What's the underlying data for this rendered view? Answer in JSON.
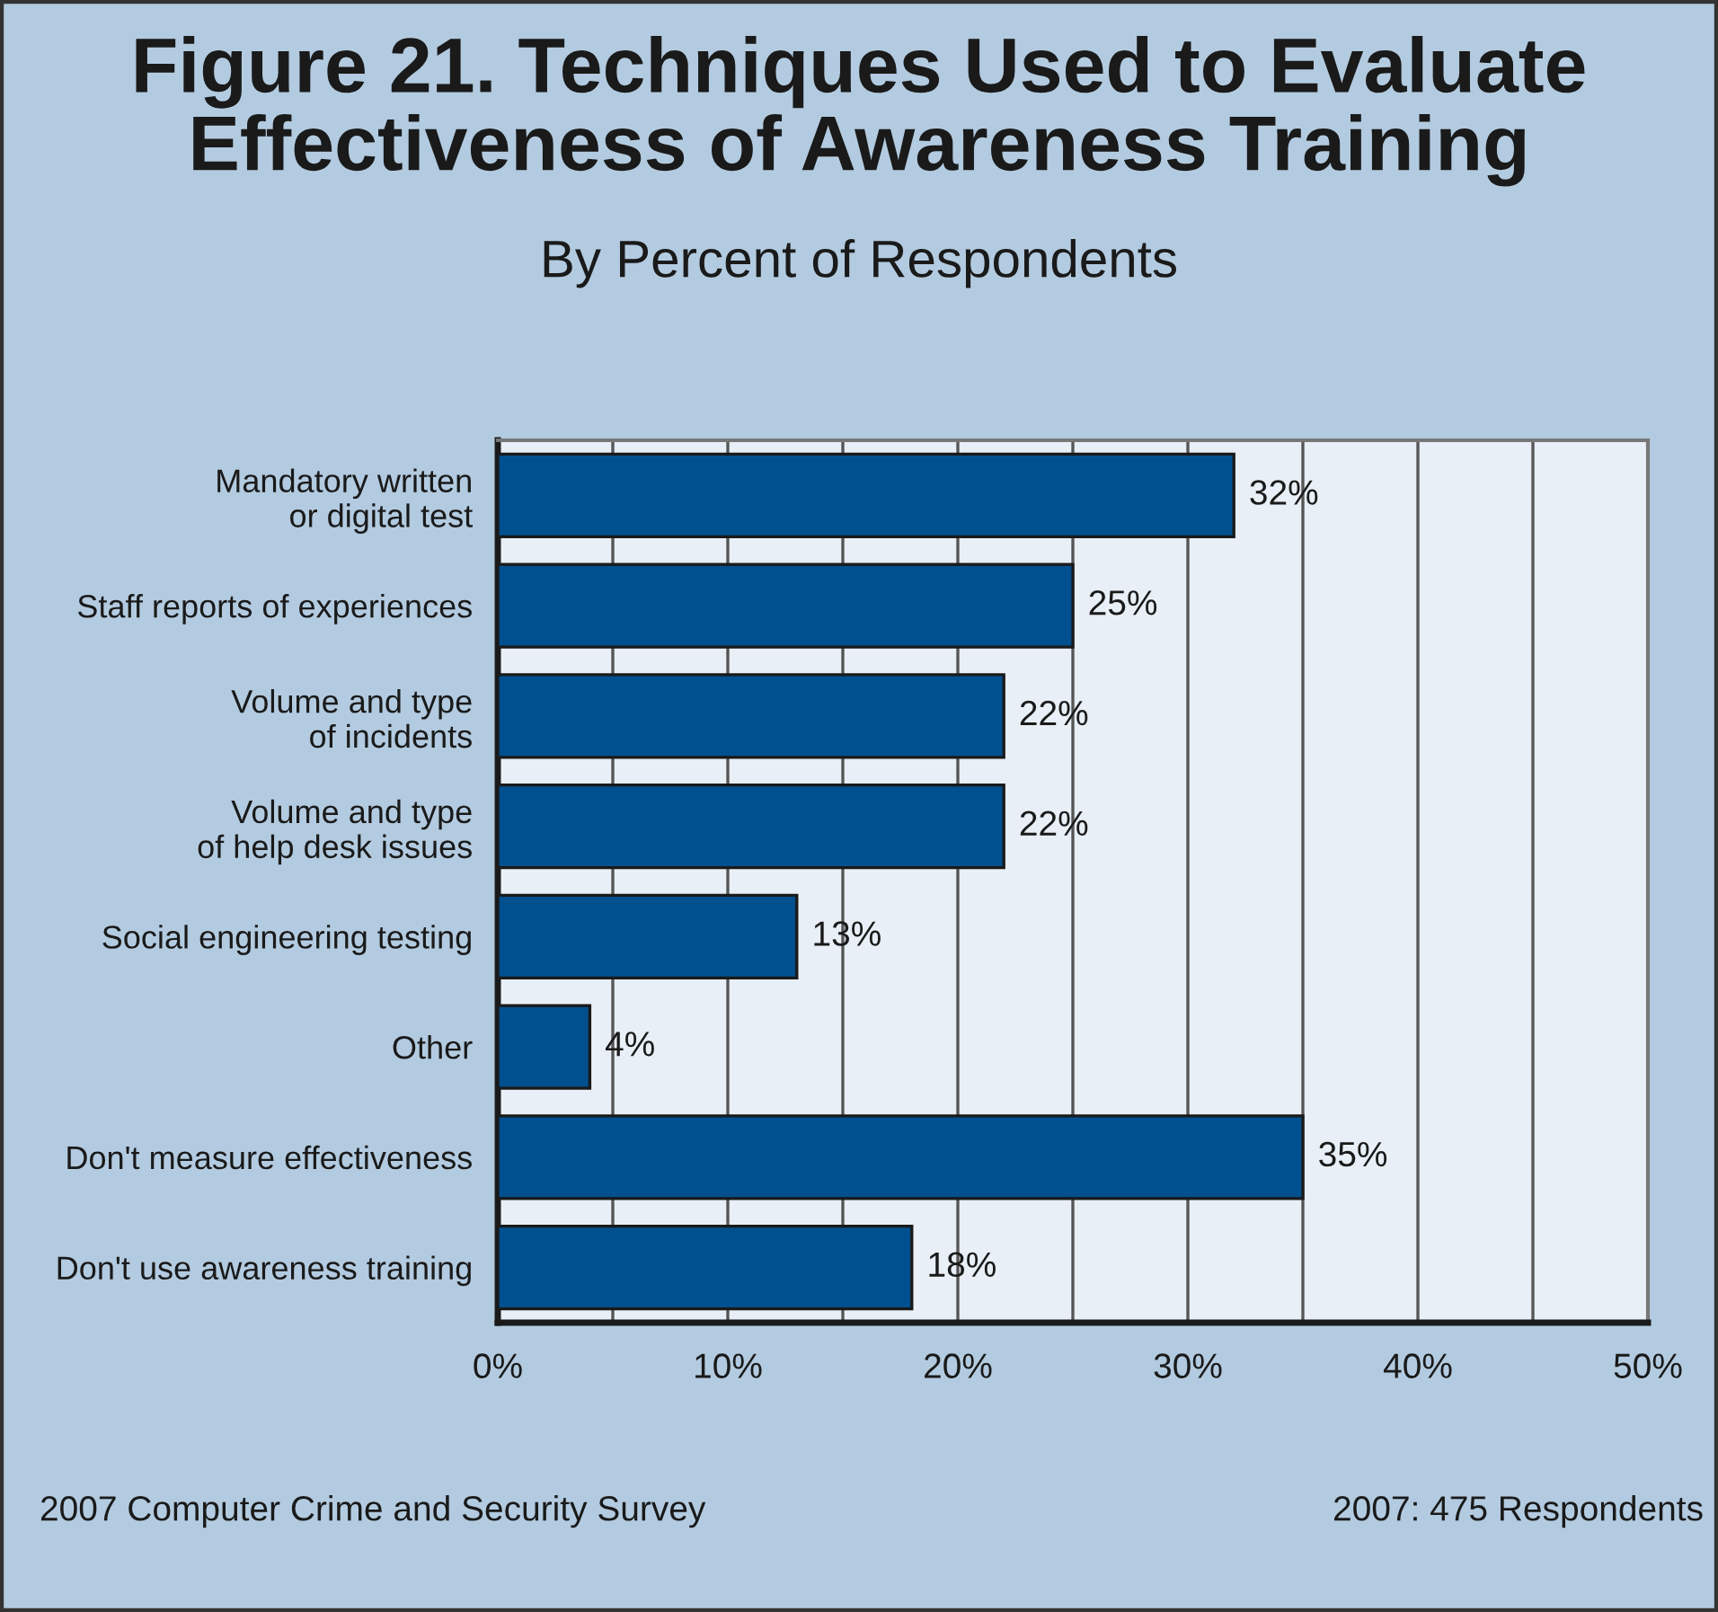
{
  "chart_data": {
    "type": "bar",
    "orientation": "horizontal",
    "title": "Figure 21. Techniques Used to Evaluate\nEffectiveness of Awareness Training",
    "subtitle": "By Percent of Respondents",
    "categories": [
      "Mandatory written\nor digital test",
      "Staff reports of experiences",
      "Volume and type\nof incidents",
      "Volume and type\nof help desk issues",
      "Social engineering testing",
      "Other",
      "Don't measure effectiveness",
      "Don't use awareness training"
    ],
    "values": [
      32,
      25,
      22,
      22,
      13,
      4,
      35,
      18
    ],
    "value_labels": [
      "32%",
      "25%",
      "22%",
      "22%",
      "13%",
      "4%",
      "35%",
      "18%"
    ],
    "color": "#00508f",
    "xlim": [
      0,
      50
    ],
    "xticks": [
      {
        "value": 0,
        "label": "0%"
      },
      {
        "value": 5,
        "label": null
      },
      {
        "value": 10,
        "label": "10%"
      },
      {
        "value": 15,
        "label": null
      },
      {
        "value": 20,
        "label": "20%"
      },
      {
        "value": 25,
        "label": null
      },
      {
        "value": 30,
        "label": "30%"
      },
      {
        "value": 35,
        "label": null
      },
      {
        "value": 40,
        "label": "40%"
      },
      {
        "value": 45,
        "label": null
      },
      {
        "value": 50,
        "label": "50%"
      }
    ],
    "grid": "x",
    "annotations": [
      "2007 Computer Crime and Security Survey",
      "2007: 475 Respondents"
    ]
  }
}
